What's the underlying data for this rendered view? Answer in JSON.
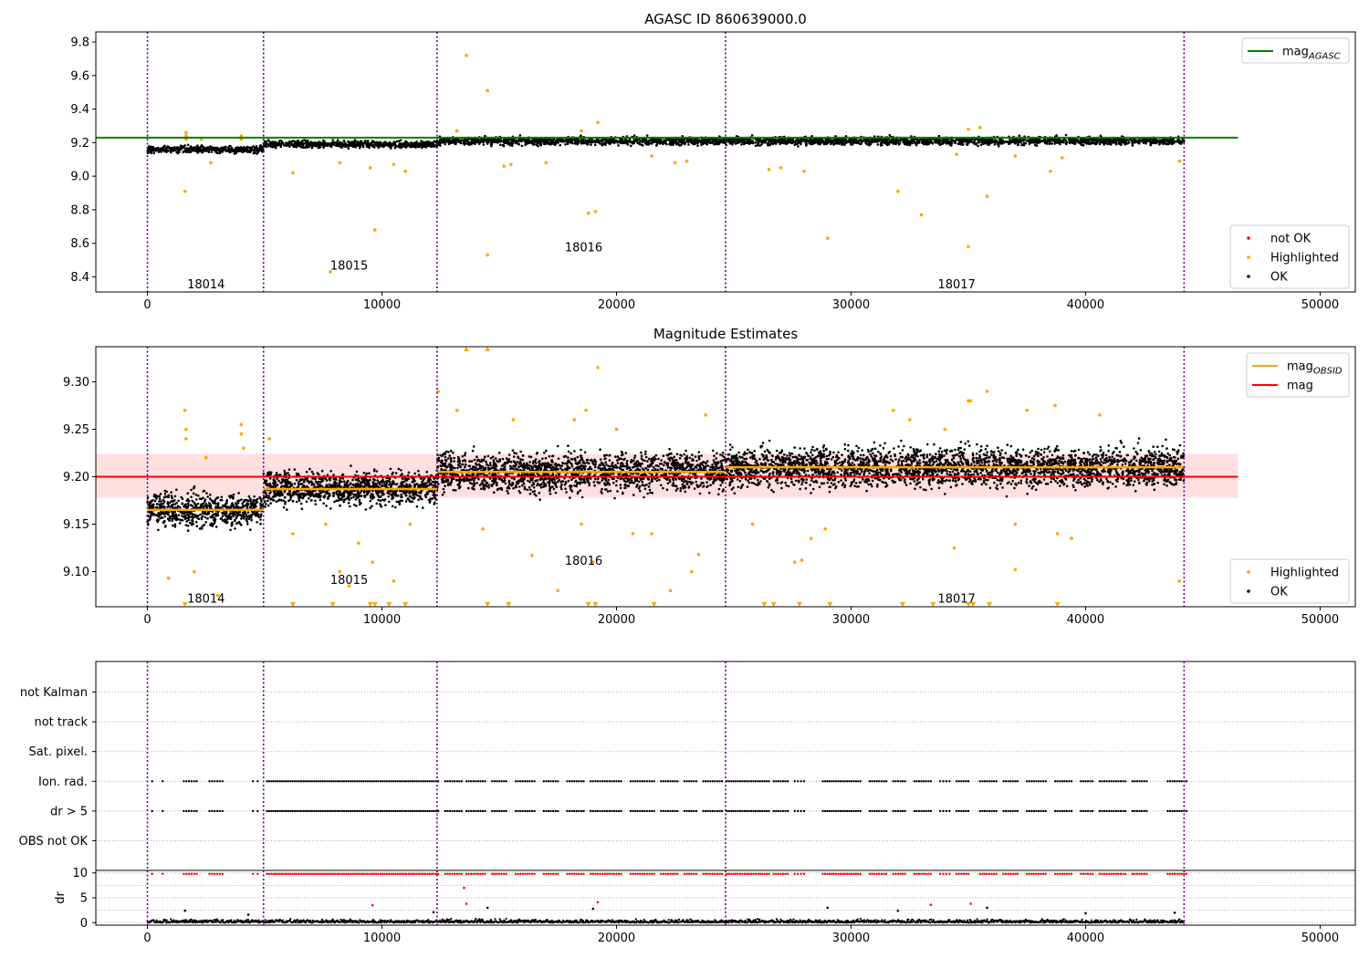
{
  "chart_data": [
    {
      "type": "scatter",
      "title": "AGASC ID 860639000.0",
      "xlim": [
        -2200,
        51500
      ],
      "ylim": [
        8.31,
        9.86
      ],
      "xticks": [
        0,
        10000,
        20000,
        30000,
        40000,
        50000
      ],
      "yticks": [
        8.4,
        8.6,
        8.8,
        9.0,
        9.2,
        9.4,
        9.6,
        9.8
      ],
      "obsid_boundaries": [
        0,
        4950,
        12350,
        24650,
        44200
      ],
      "obsid_labels": [
        {
          "text": "18014",
          "x": 2500,
          "y": 8.36
        },
        {
          "text": "18015",
          "x": 8600,
          "y": 8.47
        },
        {
          "text": "18016",
          "x": 18600,
          "y": 8.58
        },
        {
          "text": "18017",
          "x": 34500,
          "y": 8.36
        }
      ],
      "reference_line": {
        "name": "mag_AGASC",
        "value": 9.23,
        "x_range": [
          -2200,
          46500
        ],
        "color": "#008000"
      },
      "segments": [
        {
          "x0": 0,
          "x1": 4950,
          "center": 9.16,
          "spread": 0.035
        },
        {
          "x0": 4950,
          "x1": 12350,
          "center": 9.19,
          "spread": 0.035
        },
        {
          "x0": 12350,
          "x1": 24650,
          "center": 9.21,
          "spread": 0.04
        },
        {
          "x0": 24650,
          "x1": 44200,
          "center": 9.21,
          "spread": 0.04
        }
      ],
      "highlighted_points": [
        [
          1600,
          8.91
        ],
        [
          1650,
          9.24
        ],
        [
          1650,
          9.26
        ],
        [
          1650,
          9.22
        ],
        [
          2300,
          9.22
        ],
        [
          2700,
          9.08
        ],
        [
          4000,
          9.24
        ],
        [
          4000,
          9.22
        ],
        [
          6200,
          9.02
        ],
        [
          7800,
          8.43
        ],
        [
          8200,
          9.08
        ],
        [
          9500,
          9.05
        ],
        [
          9700,
          8.68
        ],
        [
          10500,
          9.07
        ],
        [
          11000,
          9.03
        ],
        [
          13200,
          9.27
        ],
        [
          13600,
          9.72
        ],
        [
          14500,
          9.51
        ],
        [
          14500,
          8.53
        ],
        [
          15200,
          9.06
        ],
        [
          15500,
          9.07
        ],
        [
          17000,
          9.08
        ],
        [
          18500,
          9.27
        ],
        [
          18800,
          8.78
        ],
        [
          19100,
          8.79
        ],
        [
          19200,
          9.32
        ],
        [
          21500,
          9.12
        ],
        [
          22500,
          9.08
        ],
        [
          23000,
          9.09
        ],
        [
          26500,
          9.04
        ],
        [
          27000,
          9.05
        ],
        [
          28000,
          9.03
        ],
        [
          29000,
          8.63
        ],
        [
          32000,
          8.91
        ],
        [
          33000,
          8.77
        ],
        [
          34500,
          9.13
        ],
        [
          35000,
          9.28
        ],
        [
          35000,
          8.58
        ],
        [
          35500,
          9.29
        ],
        [
          35800,
          8.88
        ],
        [
          37000,
          9.12
        ],
        [
          38500,
          9.03
        ],
        [
          39000,
          9.11
        ],
        [
          44000,
          9.09
        ]
      ],
      "legend_top": [
        {
          "label": "mag",
          "sub": "AGASC",
          "color": "#008000",
          "kind": "line"
        }
      ],
      "legend_bottom": [
        {
          "label": "not OK",
          "color": "#ff0000",
          "kind": "point"
        },
        {
          "label": "Highlighted",
          "color": "#ffa500",
          "kind": "point"
        },
        {
          "label": "OK",
          "color": "#000000",
          "kind": "point"
        }
      ]
    },
    {
      "type": "scatter",
      "title": "Magnitude Estimates",
      "xlim": [
        -2200,
        51500
      ],
      "ylim": [
        9.063,
        9.337
      ],
      "xticks": [
        0,
        10000,
        20000,
        30000,
        40000,
        50000
      ],
      "yticks": [
        9.1,
        9.15,
        9.2,
        9.25,
        9.3
      ],
      "obsid_boundaries": [
        0,
        4950,
        12350,
        24650,
        44200
      ],
      "obsid_labels": [
        {
          "text": "18014",
          "x": 2500,
          "y": 9.072
        },
        {
          "text": "18015",
          "x": 8600,
          "y": 9.092
        },
        {
          "text": "18016",
          "x": 18600,
          "y": 9.112
        },
        {
          "text": "18017",
          "x": 34500,
          "y": 9.072
        }
      ],
      "mag_line": {
        "name": "mag",
        "value": 9.2,
        "band": [
          9.178,
          9.224
        ],
        "x_range": [
          -2200,
          46500
        ],
        "color": "#ff0000"
      },
      "obsid_mags": [
        {
          "x0": 0,
          "x1": 4950,
          "value": 9.165
        },
        {
          "x0": 4950,
          "x1": 12350,
          "value": 9.187
        },
        {
          "x0": 12350,
          "x1": 24650,
          "value": 9.205
        },
        {
          "x0": 24650,
          "x1": 44200,
          "value": 9.21
        }
      ],
      "segments": [
        {
          "x0": 0,
          "x1": 4950,
          "center": 9.165,
          "spread": 0.03
        },
        {
          "x0": 4950,
          "x1": 12350,
          "center": 9.188,
          "spread": 0.03
        },
        {
          "x0": 12350,
          "x1": 24650,
          "center": 9.205,
          "spread": 0.035
        },
        {
          "x0": 24650,
          "x1": 44200,
          "center": 9.21,
          "spread": 0.035
        }
      ],
      "highlighted_points": [
        [
          900,
          9.093
        ],
        [
          1600,
          9.27
        ],
        [
          1650,
          9.25
        ],
        [
          1650,
          9.24
        ],
        [
          2000,
          9.1
        ],
        [
          2500,
          9.22
        ],
        [
          3000,
          9.075
        ],
        [
          4000,
          9.255
        ],
        [
          4000,
          9.245
        ],
        [
          4100,
          9.23
        ],
        [
          5200,
          9.24
        ],
        [
          6200,
          9.14
        ],
        [
          7600,
          9.15
        ],
        [
          8200,
          9.1
        ],
        [
          8600,
          9.085
        ],
        [
          9000,
          9.13
        ],
        [
          9600,
          9.11
        ],
        [
          10500,
          9.09
        ],
        [
          11200,
          9.15
        ],
        [
          12400,
          9.29
        ],
        [
          13200,
          9.27
        ],
        [
          14300,
          9.145
        ],
        [
          15600,
          9.26
        ],
        [
          16400,
          9.117
        ],
        [
          17500,
          9.08
        ],
        [
          18200,
          9.26
        ],
        [
          18500,
          9.15
        ],
        [
          18700,
          9.27
        ],
        [
          19000,
          9.11
        ],
        [
          19200,
          9.315
        ],
        [
          20000,
          9.25
        ],
        [
          20700,
          9.14
        ],
        [
          21500,
          9.14
        ],
        [
          22300,
          9.08
        ],
        [
          23200,
          9.1
        ],
        [
          23500,
          9.118
        ],
        [
          23800,
          9.265
        ],
        [
          25800,
          9.15
        ],
        [
          27600,
          9.11
        ],
        [
          27900,
          9.112
        ],
        [
          28300,
          9.135
        ],
        [
          28900,
          9.145
        ],
        [
          31800,
          9.27
        ],
        [
          32500,
          9.26
        ],
        [
          34000,
          9.25
        ],
        [
          34400,
          9.125
        ],
        [
          35000,
          9.28
        ],
        [
          35100,
          9.28
        ],
        [
          35800,
          9.29
        ],
        [
          37000,
          9.15
        ],
        [
          37000,
          9.102
        ],
        [
          37500,
          9.27
        ],
        [
          38700,
          9.275
        ],
        [
          38800,
          9.14
        ],
        [
          39400,
          9.135
        ],
        [
          40600,
          9.265
        ],
        [
          44000,
          9.09
        ]
      ],
      "highlighted_below_axis": [
        1600,
        6200,
        7900,
        9500,
        9700,
        10300,
        11000,
        14500,
        15400,
        18800,
        19100,
        21600,
        26300,
        26700,
        27800,
        29100,
        32200,
        33500,
        35000,
        35200,
        35900,
        38800
      ],
      "highlighted_above_axis": [
        13600,
        14500
      ],
      "legend_top": [
        {
          "label": "mag",
          "sub": "OBSID",
          "color": "#ffa500",
          "kind": "line"
        },
        {
          "label": "mag",
          "sub": "",
          "color": "#ff0000",
          "kind": "line"
        }
      ],
      "legend_bottom": [
        {
          "label": "Highlighted",
          "color": "#ffa500",
          "kind": "point"
        },
        {
          "label": "OK",
          "color": "#000000",
          "kind": "point"
        }
      ]
    },
    {
      "type": "scatter",
      "title": "",
      "xlim": [
        -2200,
        51500
      ],
      "xticks": [
        0,
        10000,
        20000,
        30000,
        40000,
        50000
      ],
      "obsid_boundaries": [
        0,
        4950,
        12350,
        24650,
        44200
      ],
      "flag_rows": [
        "not Kalman",
        "not track",
        "Sat. pixel.",
        "Ion. rad.",
        "dr > 5",
        "OBS not OK"
      ],
      "flagged_rows": [
        "Ion. rad.",
        "dr > 5"
      ],
      "flag_clusters": [
        [
          200,
          300
        ],
        [
          650,
          750
        ],
        [
          1550,
          2100
        ],
        [
          2650,
          3200
        ],
        [
          4500,
          4550
        ],
        [
          4700,
          4800
        ],
        [
          5100,
          12400
        ],
        [
          12700,
          13400
        ],
        [
          13600,
          14400
        ],
        [
          14700,
          15300
        ],
        [
          15700,
          16500
        ],
        [
          16900,
          17500
        ],
        [
          17900,
          18600
        ],
        [
          18900,
          20200
        ],
        [
          20600,
          21600
        ],
        [
          21900,
          22600
        ],
        [
          22900,
          23400
        ],
        [
          23700,
          24500
        ],
        [
          24700,
          26500
        ],
        [
          26700,
          27300
        ],
        [
          27600,
          28000
        ],
        [
          28800,
          30400
        ],
        [
          30800,
          31500
        ],
        [
          31800,
          32300
        ],
        [
          32700,
          33400
        ],
        [
          33800,
          34200
        ],
        [
          34500,
          35000
        ],
        [
          35500,
          36200
        ],
        [
          36500,
          37100
        ],
        [
          37500,
          38300
        ],
        [
          38700,
          39400
        ],
        [
          39800,
          40300
        ],
        [
          40600,
          41700
        ],
        [
          42000,
          42600
        ],
        [
          43500,
          44300
        ]
      ],
      "dr": {
        "ylabel": "dr",
        "ylim": [
          -0.5,
          10.5
        ],
        "yticks": [
          0,
          5,
          10
        ],
        "baseline_max": 1.0,
        "outliers": [
          [
            1600,
            2.4
          ],
          [
            4300,
            1.6
          ],
          [
            9600,
            3.5
          ],
          [
            12200,
            2.1
          ],
          [
            13500,
            7.0
          ],
          [
            13600,
            3.8
          ],
          [
            14500,
            3.0
          ],
          [
            19000,
            2.8
          ],
          [
            19200,
            4.1
          ],
          [
            29000,
            3.0
          ],
          [
            32000,
            2.4
          ],
          [
            33400,
            3.6
          ],
          [
            35100,
            3.8
          ],
          [
            35800,
            3.0
          ],
          [
            40000,
            1.9
          ],
          [
            43800,
            2.0
          ]
        ]
      }
    }
  ]
}
